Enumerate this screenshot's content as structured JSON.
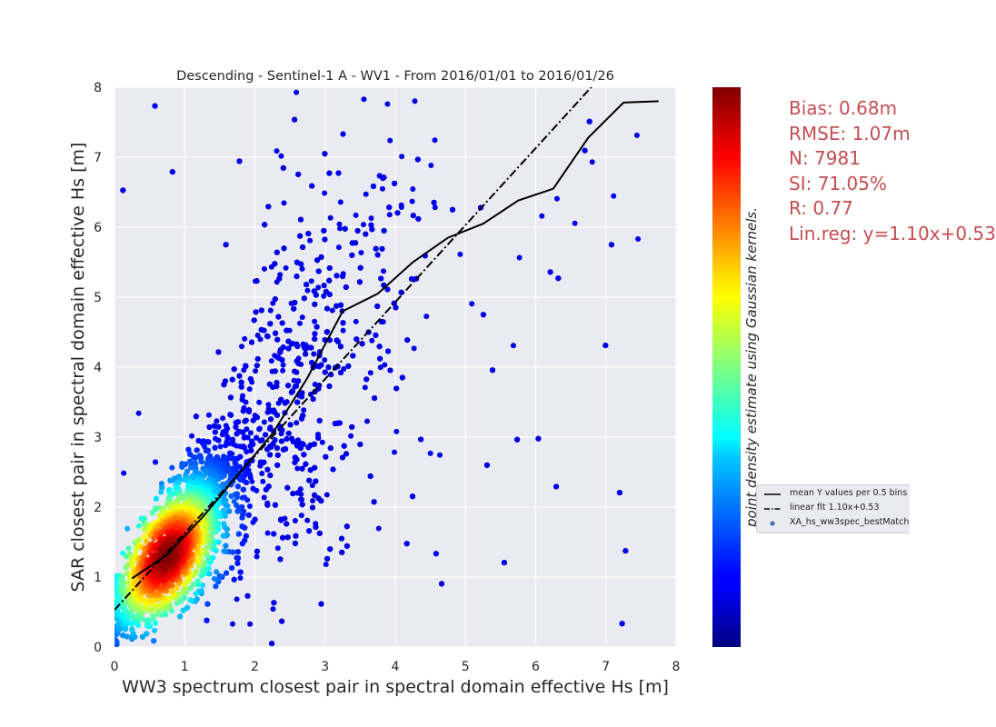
{
  "chart_data": {
    "type": "scatter",
    "title": "Descending - Sentinel-1 A - WV1 - From 2016/01/01 to 2016/01/26",
    "xlabel": "WW3 spectrum closest pair in spectral domain effective Hs [m]",
    "ylabel": "SAR closest pair in spectral domain effective Hs [m]",
    "xlim": [
      0,
      8
    ],
    "ylim": [
      0,
      8
    ],
    "x_ticks": [
      "0",
      "1",
      "2",
      "3",
      "4",
      "5",
      "6",
      "7",
      "8"
    ],
    "y_ticks": [
      "0",
      "1",
      "2",
      "3",
      "4",
      "5",
      "6",
      "7",
      "8"
    ],
    "grid": true,
    "colorbar_label": "point density estimate using Gaussian kernels.",
    "colormap": "jet",
    "colors": {
      "plot_background": "#eaeaf2",
      "grid": "#ffffff",
      "stats_text": "#c44e52",
      "line": "#000000"
    },
    "stats": [
      "Bias: 0.68m",
      "RMSE: 1.07m",
      "N: 7981",
      "SI: 71.05%",
      "R: 0.77",
      "Lin.reg: y=1.10x+0.53"
    ],
    "legend": {
      "position": "right-middle",
      "entries": [
        "mean Y values per 0.5 bins",
        "linear fit 1.10x+0.53",
        "XA_hs_ww3spec_bestMatch"
      ]
    },
    "series": [
      {
        "name": "mean Y values per 0.5 bins",
        "type": "line",
        "x": [
          0.25,
          0.75,
          1.25,
          1.75,
          2.25,
          2.75,
          3.25,
          3.75,
          4.25,
          4.75,
          5.25,
          5.75,
          6.25,
          6.75,
          7.25,
          7.75
        ],
        "y": [
          0.98,
          1.32,
          1.85,
          2.45,
          3.05,
          3.85,
          4.8,
          5.05,
          5.5,
          5.85,
          6.05,
          6.38,
          6.55,
          7.28,
          7.78,
          7.8
        ]
      },
      {
        "name": "linear fit 1.10x+0.53",
        "type": "line",
        "slope": 1.1,
        "intercept": 0.53
      },
      {
        "name": "XA_hs_ww3spec_bestMatch",
        "type": "scatter",
        "n": 7981,
        "density_core": [
          0.75,
          1.3
        ]
      }
    ]
  }
}
